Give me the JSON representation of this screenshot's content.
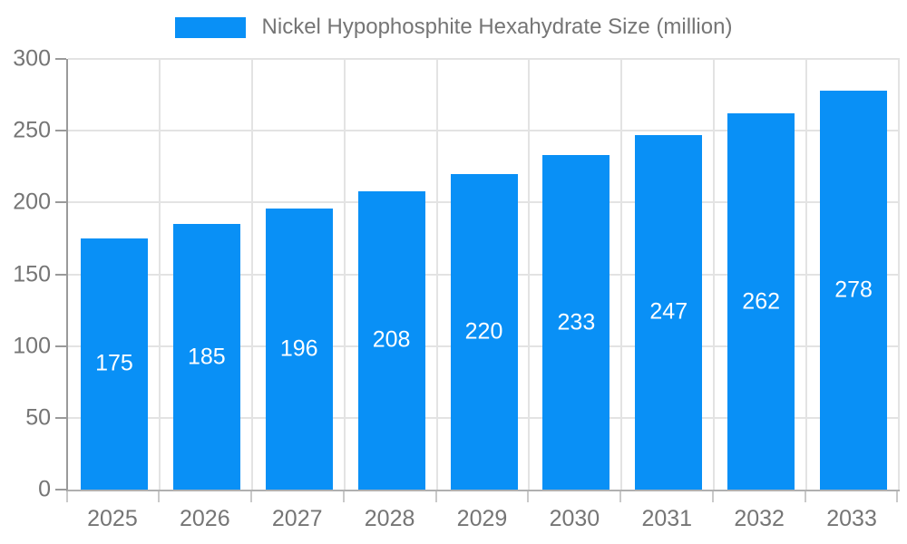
{
  "legend": {
    "label": "Nickel Hypophosphite Hexahydrate Size (million)",
    "position": "top-center"
  },
  "colors": {
    "bar": "#0990f6",
    "axis_line": "#9a9a9a",
    "gridline": "#e3e3e3",
    "tick_label": "#757575",
    "bar_value_label": "#ffffff"
  },
  "chart_data": {
    "type": "bar",
    "title": "Nickel Hypophosphite Hexahydrate Size (million)",
    "categories": [
      "2025",
      "2026",
      "2027",
      "2028",
      "2029",
      "2030",
      "2031",
      "2032",
      "2033"
    ],
    "values": [
      175,
      185,
      196,
      208,
      220,
      233,
      247,
      262,
      278
    ],
    "xlabel": "",
    "ylabel": "",
    "ylim": [
      0,
      300
    ],
    "ytick_step": 50,
    "yticks": [
      0,
      50,
      100,
      150,
      200,
      250,
      300
    ],
    "grid": true,
    "value_labels": "inside-center",
    "legend_position": "top-center"
  }
}
